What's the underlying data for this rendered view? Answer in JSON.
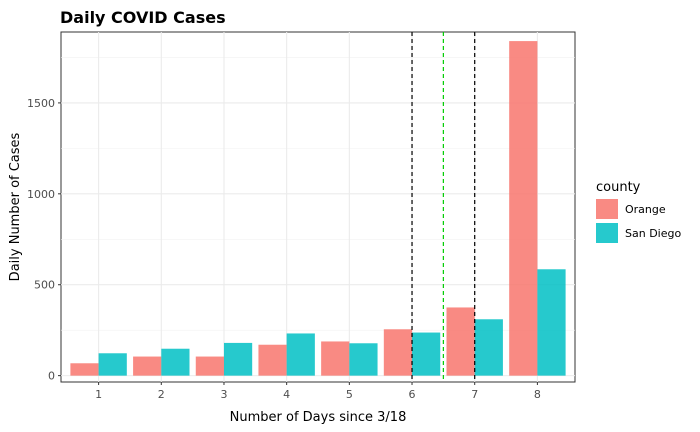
{
  "chart_data": {
    "type": "bar",
    "title": "Daily COVID Cases",
    "xlabel": "Number of Days since 3/18",
    "ylabel": "Daily Number of Cases",
    "categories": [
      "1",
      "2",
      "3",
      "4",
      "5",
      "6",
      "7",
      "8"
    ],
    "x": [
      1,
      2,
      3,
      4,
      5,
      6,
      7,
      8
    ],
    "series": [
      {
        "name": "Orange",
        "values": [
          68,
          105,
          105,
          170,
          188,
          255,
          375,
          1840
        ],
        "color": "#F8766D"
      },
      {
        "name": "San Diego",
        "values": [
          123,
          148,
          180,
          232,
          178,
          237,
          310,
          585
        ],
        "color": "#00BFC4"
      }
    ],
    "ylim": [
      -35,
      1890
    ],
    "xlim": [
      0.4,
      8.6
    ],
    "y_ticks": [
      0,
      500,
      1000,
      1500
    ],
    "y_minor_ticks": [
      250,
      750,
      1250,
      1750
    ],
    "x_ticks": [
      1,
      2,
      3,
      4,
      5,
      6,
      7,
      8
    ],
    "vlines": [
      {
        "x": 6,
        "color": "#000000",
        "style": "dashed"
      },
      {
        "x": 6.5,
        "color": "#00CC00",
        "style": "dashed"
      },
      {
        "x": 7,
        "color": "#000000",
        "style": "dashed"
      }
    ],
    "grid": true,
    "legend": {
      "title": "county",
      "position": "right"
    }
  }
}
